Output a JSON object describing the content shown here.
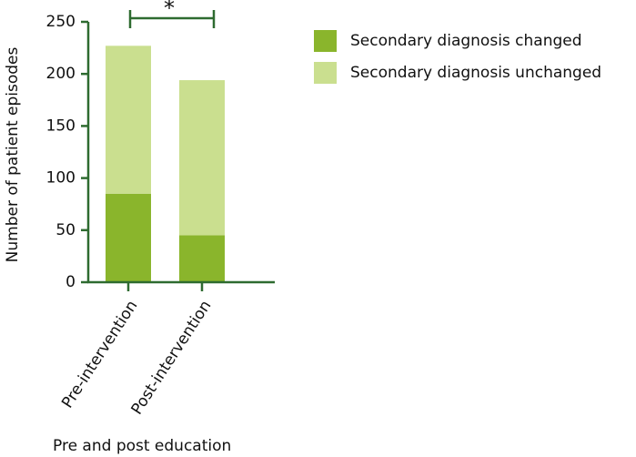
{
  "chart_data": {
    "type": "stacked_bar",
    "y_label": "Number of patient episodes",
    "x_label": "Pre and post education",
    "categories": [
      "Pre-intervention",
      "Post-intervention"
    ],
    "series": [
      {
        "name": "Secondary diagnosis changed",
        "color": "#8ab52c",
        "values": [
          85,
          45
        ]
      },
      {
        "name": "Secondary diagnosis unchanged",
        "color": "#cadf8f",
        "values": [
          142,
          149
        ]
      }
    ],
    "annotation": "*",
    "ylim": [
      0,
      250
    ],
    "yticks": [
      0,
      50,
      100,
      150,
      200,
      250
    ]
  }
}
